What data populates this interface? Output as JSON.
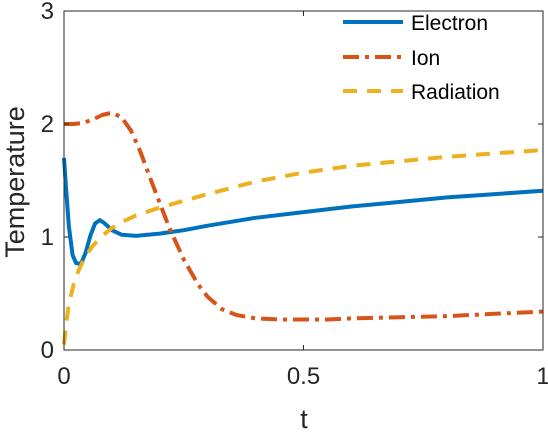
{
  "chart_data": {
    "type": "line",
    "xlabel": "t",
    "ylabel": "Temperature",
    "xlim": [
      0,
      1
    ],
    "ylim": [
      0,
      3
    ],
    "xticks": [
      0,
      0.5,
      1
    ],
    "xtick_labels": [
      "0",
      "0.5",
      "1"
    ],
    "yticks": [
      0,
      1,
      2,
      3
    ],
    "ytick_labels": [
      "0",
      "1",
      "2",
      "3"
    ],
    "grid": false,
    "legend_position": "top-right",
    "series": [
      {
        "name": "Electron",
        "color": "#0072BD",
        "style": "solid",
        "x": [
          0,
          0.004,
          0.01,
          0.018,
          0.025,
          0.035,
          0.045,
          0.055,
          0.065,
          0.075,
          0.085,
          0.1,
          0.12,
          0.15,
          0.2,
          0.25,
          0.3,
          0.4,
          0.5,
          0.6,
          0.7,
          0.8,
          0.9,
          1.0
        ],
        "y": [
          1.7,
          1.45,
          1.1,
          0.84,
          0.77,
          0.76,
          0.86,
          1.01,
          1.12,
          1.15,
          1.12,
          1.06,
          1.02,
          1.01,
          1.03,
          1.06,
          1.1,
          1.17,
          1.22,
          1.27,
          1.31,
          1.35,
          1.38,
          1.41
        ]
      },
      {
        "name": "Ion",
        "color": "#D95319",
        "style": "dashdot",
        "x": [
          0,
          0.02,
          0.04,
          0.06,
          0.08,
          0.1,
          0.12,
          0.14,
          0.16,
          0.18,
          0.2,
          0.22,
          0.25,
          0.28,
          0.3,
          0.33,
          0.36,
          0.4,
          0.45,
          0.5,
          0.55,
          0.6,
          0.7,
          0.8,
          0.9,
          1.0
        ],
        "y": [
          2.0,
          2.0,
          2.01,
          2.04,
          2.08,
          2.1,
          2.06,
          1.94,
          1.75,
          1.52,
          1.3,
          1.08,
          0.8,
          0.58,
          0.47,
          0.36,
          0.31,
          0.28,
          0.27,
          0.27,
          0.27,
          0.28,
          0.29,
          0.3,
          0.32,
          0.34
        ]
      },
      {
        "name": "Radiation",
        "color": "#EDB120",
        "style": "dashed",
        "x": [
          0,
          0.005,
          0.01,
          0.02,
          0.03,
          0.04,
          0.05,
          0.06,
          0.08,
          0.1,
          0.12,
          0.15,
          0.2,
          0.25,
          0.3,
          0.4,
          0.5,
          0.6,
          0.7,
          0.8,
          0.9,
          1.0
        ],
        "y": [
          0.05,
          0.25,
          0.4,
          0.58,
          0.7,
          0.79,
          0.86,
          0.92,
          1.01,
          1.08,
          1.13,
          1.19,
          1.26,
          1.32,
          1.38,
          1.49,
          1.57,
          1.63,
          1.67,
          1.71,
          1.74,
          1.77
        ]
      }
    ]
  }
}
